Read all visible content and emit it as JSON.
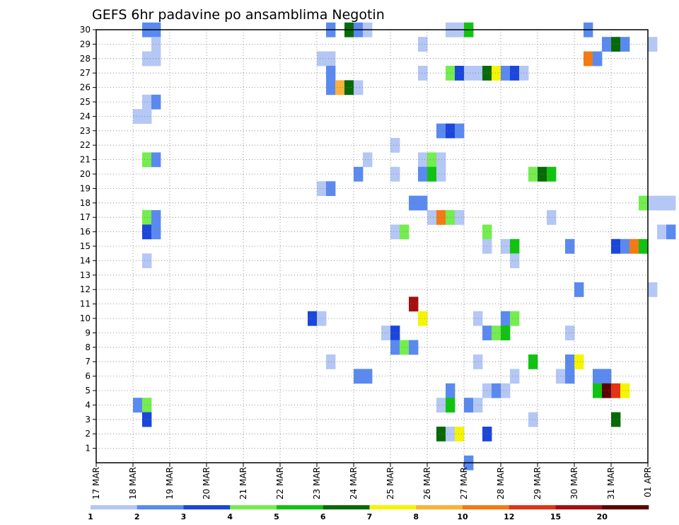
{
  "chart_data": {
    "type": "heatmap",
    "title": "GEFS 6hr padavine po ansamblima Negotin",
    "y_ticks": [
      "1",
      "2",
      "3",
      "4",
      "5",
      "6",
      "7",
      "8",
      "9",
      "10",
      "11",
      "12",
      "13",
      "14",
      "15",
      "16",
      "17",
      "18",
      "19",
      "20",
      "21",
      "22",
      "23",
      "24",
      "25",
      "26",
      "27",
      "28",
      "29",
      "30"
    ],
    "x_ticks": [
      "17 MAR",
      "18 MAR",
      "19 MAR",
      "20 MAR",
      "21 MAR",
      "22 MAR",
      "23 MAR",
      "24 MAR",
      "25 MAR",
      "26 MAR",
      "27 MAR",
      "28 MAR",
      "29 MAR",
      "30 MAR",
      "31 MAR",
      "01 APR"
    ],
    "x_range_days": [
      0,
      15
    ],
    "y_range": [
      0,
      30
    ],
    "grid": true,
    "legend": {
      "labels": [
        "1",
        "2",
        "3",
        "4",
        "5",
        "6",
        "7",
        "8",
        "10",
        "12",
        "15",
        "20"
      ],
      "colors": [
        "#b4c7f5",
        "#5a8af0",
        "#1a46dc",
        "#74ed4e",
        "#11c311",
        "#076a07",
        "#f5f500",
        "#fbb13a",
        "#f47a16",
        "#e53214",
        "#a50f0f",
        "#5e0000"
      ]
    },
    "cells": [
      {
        "m": 30,
        "d": 1.25,
        "c": 1
      },
      {
        "m": 30,
        "d": 1.5,
        "c": 1
      },
      {
        "m": 30,
        "d": 6.25,
        "c": 1
      },
      {
        "m": 30,
        "d": 6.75,
        "c": 5
      },
      {
        "m": 30,
        "d": 7.0,
        "c": 1
      },
      {
        "m": 30,
        "d": 7.25,
        "c": 0
      },
      {
        "m": 30,
        "d": 9.5,
        "c": 0
      },
      {
        "m": 30,
        "d": 9.75,
        "c": 0
      },
      {
        "m": 30,
        "d": 10.0,
        "c": 4
      },
      {
        "m": 30,
        "d": 13.25,
        "c": 1
      },
      {
        "m": 29,
        "d": 1.5,
        "c": 0
      },
      {
        "m": 29,
        "d": 8.75,
        "c": 0
      },
      {
        "m": 29,
        "d": 13.75,
        "c": 1
      },
      {
        "m": 29,
        "d": 14.0,
        "c": 5
      },
      {
        "m": 29,
        "d": 14.25,
        "c": 1
      },
      {
        "m": 29,
        "d": 15.0,
        "c": 0
      },
      {
        "m": 28,
        "d": 1.25,
        "c": 0
      },
      {
        "m": 28,
        "d": 1.5,
        "c": 0
      },
      {
        "m": 28,
        "d": 6.0,
        "c": 0
      },
      {
        "m": 28,
        "d": 6.25,
        "c": 0
      },
      {
        "m": 28,
        "d": 13.25,
        "c": 8
      },
      {
        "m": 28,
        "d": 13.5,
        "c": 1
      },
      {
        "m": 27,
        "d": 6.25,
        "c": 1
      },
      {
        "m": 27,
        "d": 8.75,
        "c": 0
      },
      {
        "m": 27,
        "d": 9.5,
        "c": 3
      },
      {
        "m": 27,
        "d": 9.75,
        "c": 2
      },
      {
        "m": 27,
        "d": 10.0,
        "c": 0
      },
      {
        "m": 27,
        "d": 10.25,
        "c": 0
      },
      {
        "m": 27,
        "d": 10.5,
        "c": 5
      },
      {
        "m": 27,
        "d": 10.75,
        "c": 6
      },
      {
        "m": 27,
        "d": 11.0,
        "c": 1
      },
      {
        "m": 27,
        "d": 11.25,
        "c": 2
      },
      {
        "m": 27,
        "d": 11.5,
        "c": 0
      },
      {
        "m": 26,
        "d": 6.25,
        "c": 1
      },
      {
        "m": 26,
        "d": 6.5,
        "c": 7
      },
      {
        "m": 26,
        "d": 6.75,
        "c": 5
      },
      {
        "m": 26,
        "d": 7.0,
        "c": 0
      },
      {
        "m": 25,
        "d": 1.25,
        "c": 0
      },
      {
        "m": 25,
        "d": 1.5,
        "c": 1
      },
      {
        "m": 24,
        "d": 1.0,
        "c": 0
      },
      {
        "m": 24,
        "d": 1.25,
        "c": 0
      },
      {
        "m": 23,
        "d": 9.25,
        "c": 1
      },
      {
        "m": 23,
        "d": 9.5,
        "c": 2
      },
      {
        "m": 23,
        "d": 9.75,
        "c": 1
      },
      {
        "m": 22,
        "d": 8.0,
        "c": 0
      },
      {
        "m": 21,
        "d": 1.25,
        "c": 3
      },
      {
        "m": 21,
        "d": 1.5,
        "c": 1
      },
      {
        "m": 21,
        "d": 7.25,
        "c": 0
      },
      {
        "m": 21,
        "d": 8.75,
        "c": 0
      },
      {
        "m": 21,
        "d": 9.0,
        "c": 3
      },
      {
        "m": 21,
        "d": 9.25,
        "c": 0
      },
      {
        "m": 20,
        "d": 7.0,
        "c": 1
      },
      {
        "m": 20,
        "d": 8.0,
        "c": 0
      },
      {
        "m": 20,
        "d": 8.75,
        "c": 1
      },
      {
        "m": 20,
        "d": 9.0,
        "c": 4
      },
      {
        "m": 20,
        "d": 9.25,
        "c": 0
      },
      {
        "m": 20,
        "d": 11.75,
        "c": 3
      },
      {
        "m": 20,
        "d": 12.0,
        "c": 5
      },
      {
        "m": 20,
        "d": 12.25,
        "c": 4
      },
      {
        "m": 19,
        "d": 6.0,
        "c": 0
      },
      {
        "m": 19,
        "d": 6.25,
        "c": 1
      },
      {
        "m": 18,
        "d": 8.5,
        "c": 1
      },
      {
        "m": 18,
        "d": 8.75,
        "c": 1
      },
      {
        "m": 18,
        "d": 14.75,
        "c": 3
      },
      {
        "m": 18,
        "d": 15.0,
        "c": 0
      },
      {
        "m": 18,
        "d": 15.25,
        "c": 0
      },
      {
        "m": 18,
        "d": 15.5,
        "c": 0
      },
      {
        "m": 17,
        "d": 1.25,
        "c": 3
      },
      {
        "m": 17,
        "d": 1.5,
        "c": 1
      },
      {
        "m": 17,
        "d": 9.0,
        "c": 0
      },
      {
        "m": 17,
        "d": 9.25,
        "c": 8
      },
      {
        "m": 17,
        "d": 9.5,
        "c": 3
      },
      {
        "m": 17,
        "d": 9.75,
        "c": 0
      },
      {
        "m": 17,
        "d": 12.25,
        "c": 0
      },
      {
        "m": 16,
        "d": 1.25,
        "c": 2
      },
      {
        "m": 16,
        "d": 1.5,
        "c": 1
      },
      {
        "m": 16,
        "d": 8.0,
        "c": 0
      },
      {
        "m": 16,
        "d": 8.25,
        "c": 3
      },
      {
        "m": 16,
        "d": 10.5,
        "c": 3
      },
      {
        "m": 16,
        "d": 15.25,
        "c": 0
      },
      {
        "m": 16,
        "d": 15.5,
        "c": 1
      },
      {
        "m": 15,
        "d": 10.5,
        "c": 0
      },
      {
        "m": 15,
        "d": 11.0,
        "c": 0
      },
      {
        "m": 15,
        "d": 11.25,
        "c": 4
      },
      {
        "m": 15,
        "d": 12.75,
        "c": 1
      },
      {
        "m": 15,
        "d": 14.0,
        "c": 2
      },
      {
        "m": 15,
        "d": 14.25,
        "c": 1
      },
      {
        "m": 15,
        "d": 14.5,
        "c": 8
      },
      {
        "m": 15,
        "d": 14.75,
        "c": 4
      },
      {
        "m": 14,
        "d": 1.25,
        "c": 0
      },
      {
        "m": 14,
        "d": 11.25,
        "c": 0
      },
      {
        "m": 12,
        "d": 13.0,
        "c": 1
      },
      {
        "m": 12,
        "d": 15.0,
        "c": 0
      },
      {
        "m": 11,
        "d": 8.5,
        "c": 10
      },
      {
        "m": 10,
        "d": 5.75,
        "c": 2
      },
      {
        "m": 10,
        "d": 6.0,
        "c": 0
      },
      {
        "m": 10,
        "d": 8.75,
        "c": 6
      },
      {
        "m": 10,
        "d": 10.25,
        "c": 0
      },
      {
        "m": 10,
        "d": 11.0,
        "c": 1
      },
      {
        "m": 10,
        "d": 11.25,
        "c": 3
      },
      {
        "m": 9,
        "d": 7.75,
        "c": 0
      },
      {
        "m": 9,
        "d": 8.0,
        "c": 2
      },
      {
        "m": 9,
        "d": 10.5,
        "c": 1
      },
      {
        "m": 9,
        "d": 10.75,
        "c": 3
      },
      {
        "m": 9,
        "d": 11.0,
        "c": 4
      },
      {
        "m": 9,
        "d": 12.75,
        "c": 0
      },
      {
        "m": 8,
        "d": 8.0,
        "c": 1
      },
      {
        "m": 8,
        "d": 8.25,
        "c": 3
      },
      {
        "m": 8,
        "d": 8.5,
        "c": 1
      },
      {
        "m": 7,
        "d": 6.25,
        "c": 0
      },
      {
        "m": 7,
        "d": 10.25,
        "c": 0
      },
      {
        "m": 7,
        "d": 11.75,
        "c": 4
      },
      {
        "m": 7,
        "d": 12.75,
        "c": 1
      },
      {
        "m": 7,
        "d": 13.0,
        "c": 6
      },
      {
        "m": 6,
        "d": 7.0,
        "c": 1
      },
      {
        "m": 6,
        "d": 7.25,
        "c": 1
      },
      {
        "m": 6,
        "d": 11.25,
        "c": 0
      },
      {
        "m": 6,
        "d": 12.5,
        "c": 0
      },
      {
        "m": 6,
        "d": 12.75,
        "c": 1
      },
      {
        "m": 6,
        "d": 13.5,
        "c": 1
      },
      {
        "m": 6,
        "d": 13.75,
        "c": 1
      },
      {
        "m": 5,
        "d": 9.5,
        "c": 1
      },
      {
        "m": 5,
        "d": 10.5,
        "c": 0
      },
      {
        "m": 5,
        "d": 10.75,
        "c": 1
      },
      {
        "m": 5,
        "d": 11.0,
        "c": 0
      },
      {
        "m": 5,
        "d": 13.5,
        "c": 4
      },
      {
        "m": 5,
        "d": 13.75,
        "c": 11
      },
      {
        "m": 5,
        "d": 14.0,
        "c": 9
      },
      {
        "m": 5,
        "d": 14.25,
        "c": 6
      },
      {
        "m": 4,
        "d": 1.0,
        "c": 1
      },
      {
        "m": 4,
        "d": 1.25,
        "c": 3
      },
      {
        "m": 4,
        "d": 9.25,
        "c": 0
      },
      {
        "m": 4,
        "d": 9.5,
        "c": 4
      },
      {
        "m": 4,
        "d": 10.0,
        "c": 1
      },
      {
        "m": 4,
        "d": 10.25,
        "c": 0
      },
      {
        "m": 3,
        "d": 1.25,
        "c": 2
      },
      {
        "m": 3,
        "d": 11.75,
        "c": 0
      },
      {
        "m": 3,
        "d": 14.0,
        "c": 5
      },
      {
        "m": 2,
        "d": 9.25,
        "c": 5
      },
      {
        "m": 2,
        "d": 9.5,
        "c": 0
      },
      {
        "m": 2,
        "d": 9.75,
        "c": 6
      },
      {
        "m": 2,
        "d": 10.5,
        "c": 2
      },
      {
        "m": 0,
        "d": 10.0,
        "c": 1
      }
    ]
  }
}
